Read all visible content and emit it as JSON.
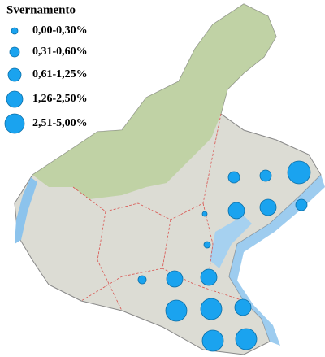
{
  "legend": {
    "title": "Svernamento",
    "items": [
      {
        "label": "0,00-0,30%"
      },
      {
        "label": "0,31-0,60%"
      },
      {
        "label": "0,61-1,25%"
      },
      {
        "label": "1,26-2,50%"
      },
      {
        "label": "2,51-5,00%"
      }
    ]
  }
}
